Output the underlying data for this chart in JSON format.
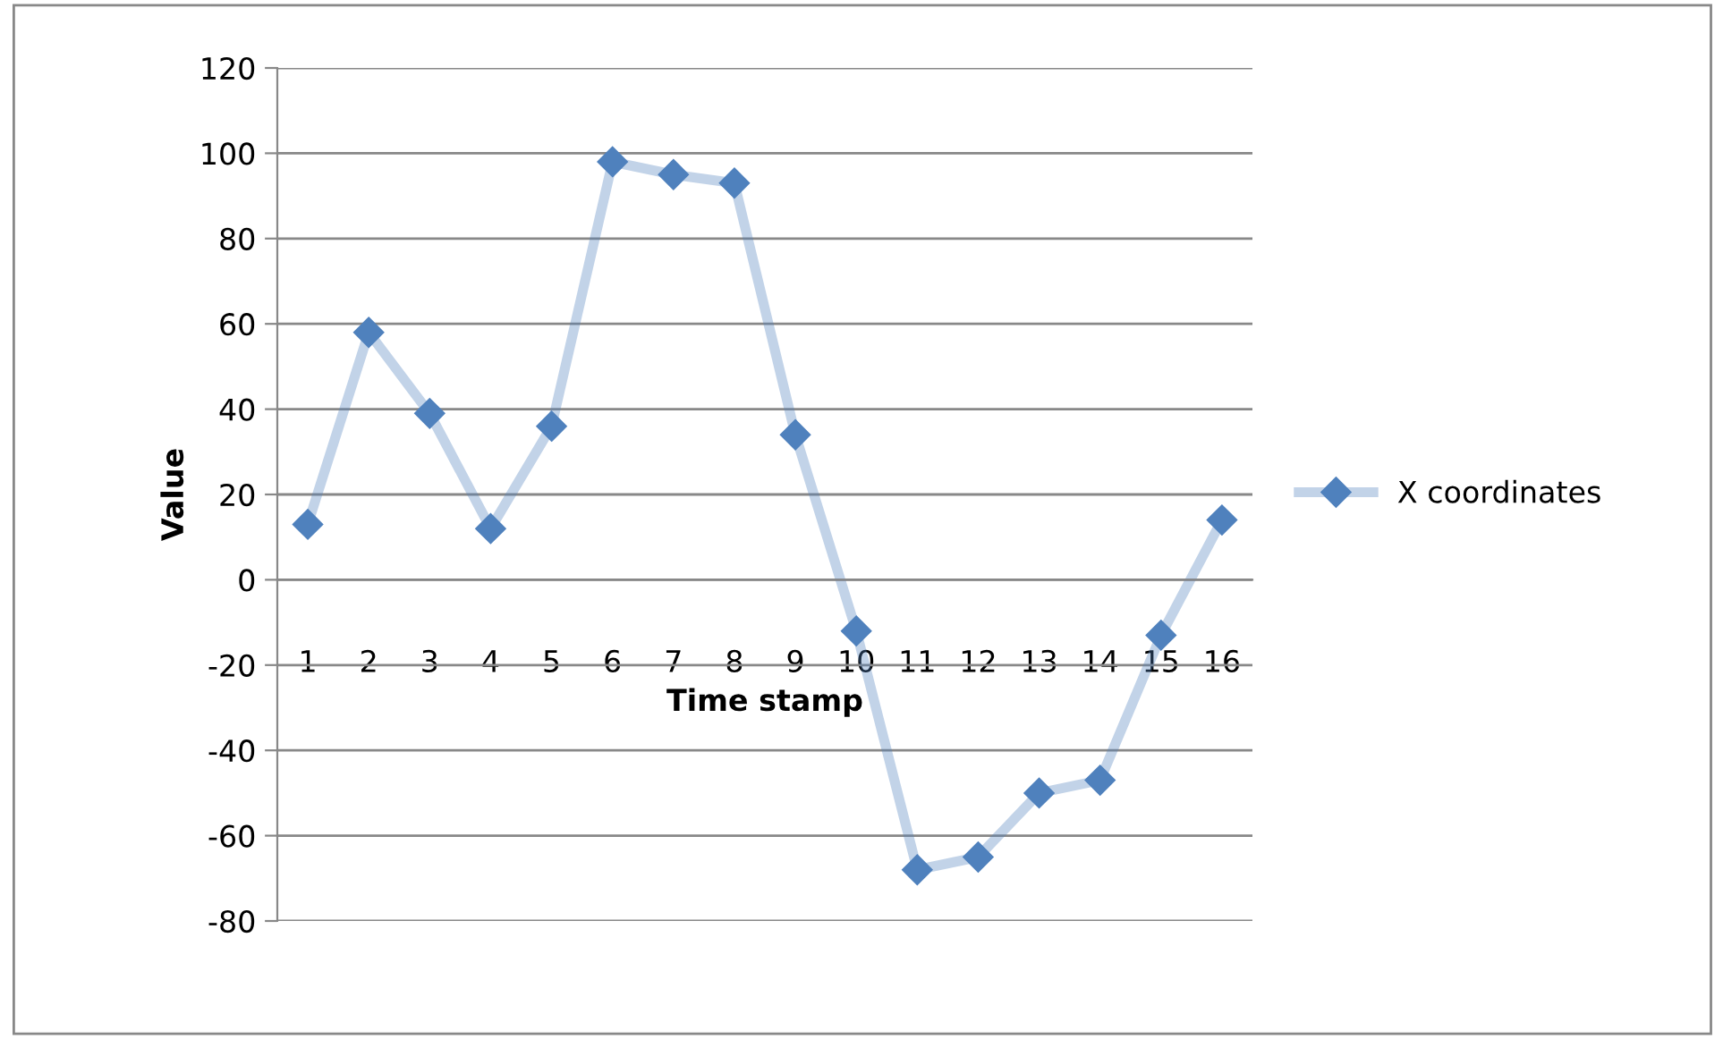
{
  "chart_data": {
    "type": "line",
    "xlabel": "Time stamp",
    "ylabel": "Value",
    "categories": [
      "1",
      "2",
      "3",
      "4",
      "5",
      "6",
      "7",
      "8",
      "9",
      "10",
      "11",
      "12",
      "13",
      "14",
      "15",
      "16"
    ],
    "series": [
      {
        "name": "X coordinates",
        "color": "#4f81bd",
        "values": [
          13,
          58,
          39,
          12,
          36,
          98,
          95,
          93,
          34,
          -12,
          -68,
          -65,
          -50,
          -47,
          -13,
          14
        ]
      }
    ],
    "ylim": [
      -80,
      120
    ],
    "yticks": [
      -80,
      -60,
      -40,
      -20,
      0,
      20,
      40,
      60,
      80,
      100,
      120
    ],
    "grid": "y",
    "legend": "right",
    "marker": "diamond",
    "line_style": "solid"
  }
}
